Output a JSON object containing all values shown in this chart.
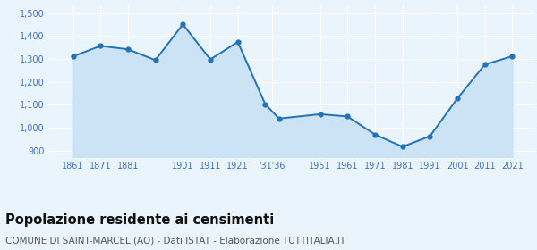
{
  "x_positions": [
    1861,
    1871,
    1881,
    1891,
    1901,
    1911,
    1921,
    1931,
    1936,
    1951,
    1961,
    1971,
    1981,
    1991,
    2001,
    2011,
    2021
  ],
  "values": [
    1311,
    1357,
    1342,
    1295,
    1451,
    1298,
    1374,
    1103,
    1040,
    1059,
    1049,
    970,
    917,
    963,
    1128,
    1276,
    1312
  ],
  "ylim": [
    870,
    1530
  ],
  "yticks": [
    900,
    1000,
    1100,
    1200,
    1300,
    1400,
    1500
  ],
  "ytick_labels": [
    "900",
    "1,000",
    "1,100",
    "1,200",
    "1,300",
    "1,400",
    "1,500"
  ],
  "line_color": "#2272b8",
  "marker_color": "#2272b8",
  "fill_color": "#cce3f5",
  "background_color": "#eaf4fc",
  "grid_color": "#ffffff",
  "title": "Popolazione residente ai censimenti",
  "subtitle": "COMUNE DI SAINT-MARCEL (AO) - Dati ISTAT - Elaborazione TUTTITALIA.IT",
  "title_fontsize": 10.5,
  "subtitle_fontsize": 7.5,
  "tick_label_color": "#4472c4",
  "tick_fontsize": 7.0,
  "xlim": [
    1852,
    2029
  ]
}
